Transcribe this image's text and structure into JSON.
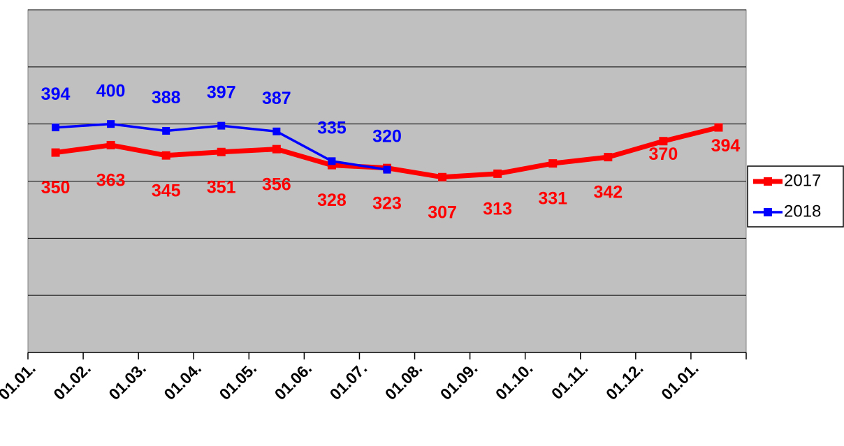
{
  "chart_data": {
    "type": "line",
    "categories": [
      "01.01.",
      "01.02.",
      "01.03.",
      "01.04.",
      "01.05.",
      "01.06.",
      "01.07.",
      "01.08.",
      "01.09.",
      "01.10.",
      "01.11.",
      "01.12.",
      "01.01."
    ],
    "series": [
      {
        "name": "2017",
        "color": "#ff0000",
        "values": [
          350,
          363,
          345,
          351,
          356,
          328,
          323,
          307,
          313,
          331,
          342,
          370,
          394
        ]
      },
      {
        "name": "2018",
        "color": "#0000ff",
        "values": [
          394,
          400,
          388,
          397,
          387,
          335,
          320,
          null,
          null,
          null,
          null,
          null,
          null
        ]
      }
    ],
    "ylim": [
      0,
      600
    ],
    "yticks": [
      0,
      100,
      200,
      300,
      400,
      500,
      600
    ],
    "grid": true,
    "legend": "right"
  }
}
